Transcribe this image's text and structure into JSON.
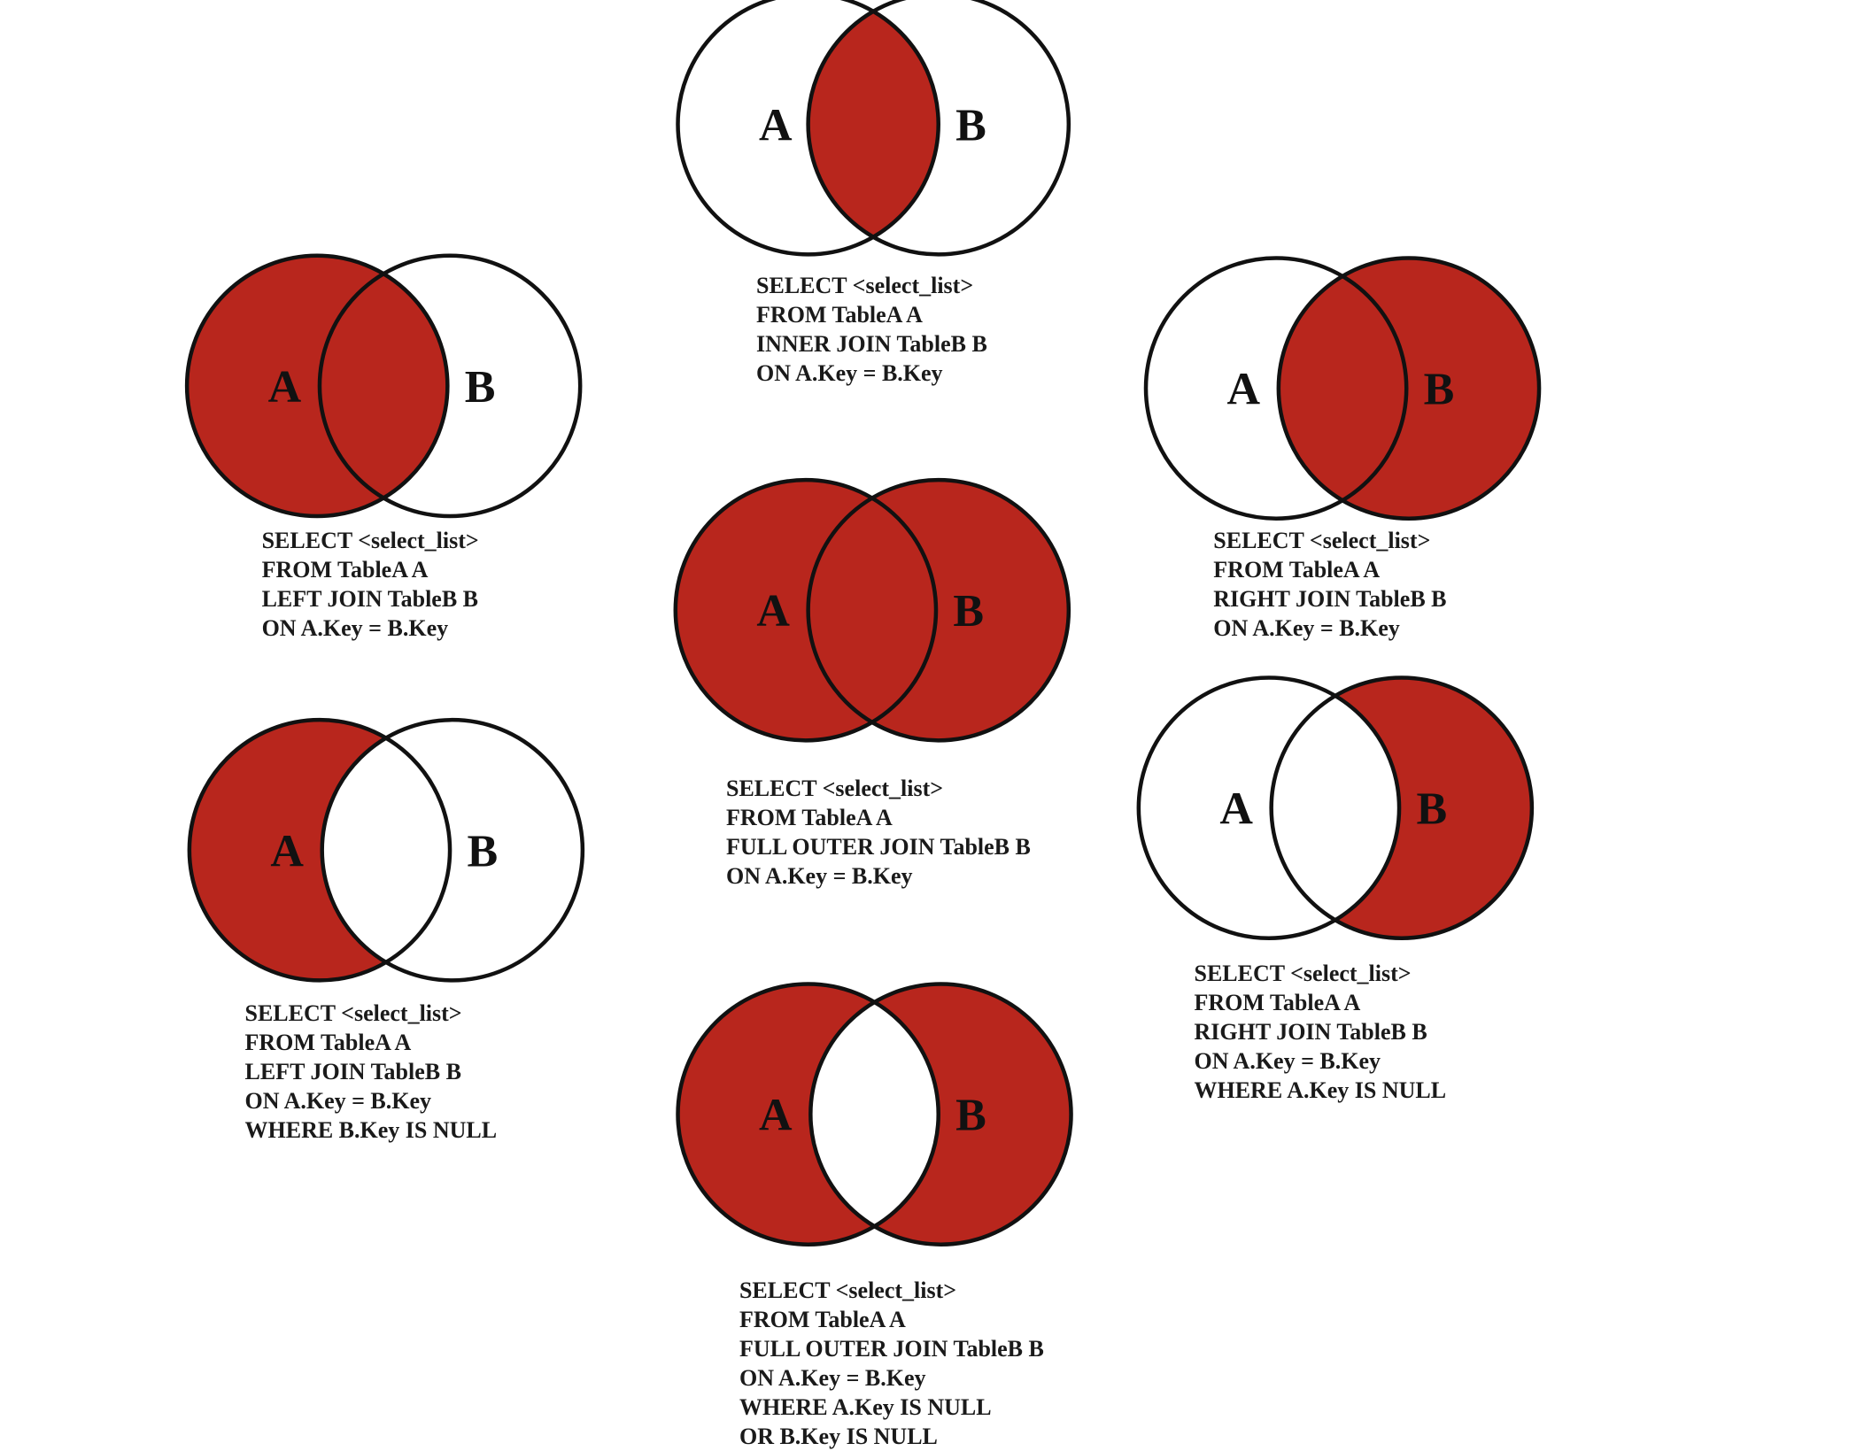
{
  "colors": {
    "fill": "#b8261d",
    "stroke": "#111111",
    "background": "#ffffff"
  },
  "labels": {
    "a": "A",
    "b": "B"
  },
  "diagrams": [
    {
      "id": "inner-join",
      "shaded": "intersection",
      "sql": [
        "SELECT <select_list>",
        "FROM TableA A",
        "INNER JOIN TableB B",
        "ON A.Key = B.Key"
      ]
    },
    {
      "id": "left-join",
      "shaded": "A",
      "sql": [
        "SELECT <select_list>",
        "FROM TableA A",
        "LEFT JOIN TableB B",
        "ON A.Key = B.Key"
      ]
    },
    {
      "id": "right-join",
      "shaded": "B",
      "sql": [
        "SELECT <select_list>",
        "FROM TableA A",
        "RIGHT JOIN TableB B",
        "ON A.Key = B.Key"
      ]
    },
    {
      "id": "full-outer-join",
      "shaded": "A and B",
      "sql": [
        "SELECT <select_list>",
        "FROM TableA A",
        "FULL OUTER JOIN TableB B",
        "ON A.Key = B.Key"
      ]
    },
    {
      "id": "left-join-exclusive",
      "shaded": "A only",
      "sql": [
        "SELECT <select_list>",
        "FROM TableA A",
        "LEFT JOIN TableB B",
        "ON A.Key = B.Key",
        "WHERE B.Key IS NULL"
      ]
    },
    {
      "id": "right-join-exclusive",
      "shaded": "B only",
      "sql": [
        "SELECT <select_list>",
        "FROM TableA A",
        "RIGHT JOIN TableB B",
        "ON A.Key = B.Key",
        "WHERE A.Key IS NULL"
      ]
    },
    {
      "id": "full-outer-join-exclusive",
      "shaded": "A only and B only",
      "sql": [
        "SELECT <select_list>",
        "FROM TableA A",
        "FULL OUTER JOIN TableB B",
        "ON A.Key = B.Key",
        "WHERE A.Key IS NULL",
        "OR B.Key IS NULL"
      ]
    }
  ]
}
